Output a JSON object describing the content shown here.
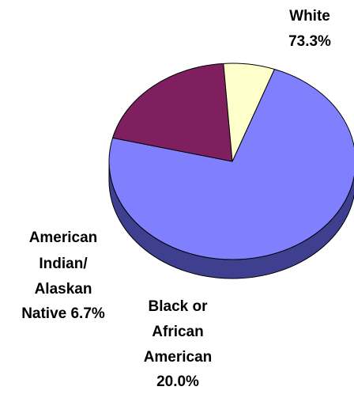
{
  "chart_data": {
    "type": "pie",
    "style": "3d",
    "slices": [
      {
        "label": "White",
        "value_label": "73.3%",
        "value": 73.3,
        "color": "#8080ff",
        "side_color": "#3f3f8f"
      },
      {
        "label": "Black or African American",
        "value_label": "20.0%",
        "value": 20.0,
        "color": "#7f1f5f",
        "side_color": "#3c0f2d"
      },
      {
        "label": "American Indian/ Alaskan Native",
        "value_label": "6.7%",
        "value": 6.7,
        "color": "#ffffcc",
        "side_color": "#7f7f66"
      }
    ],
    "labels": {
      "white": [
        "White",
        "73.3%"
      ],
      "black": [
        "Black or",
        "African",
        "American",
        "20.0%"
      ],
      "native": [
        "American",
        "Indian/",
        "Alaskan",
        "Native 6.7%"
      ]
    },
    "edge_color": "#000000"
  }
}
